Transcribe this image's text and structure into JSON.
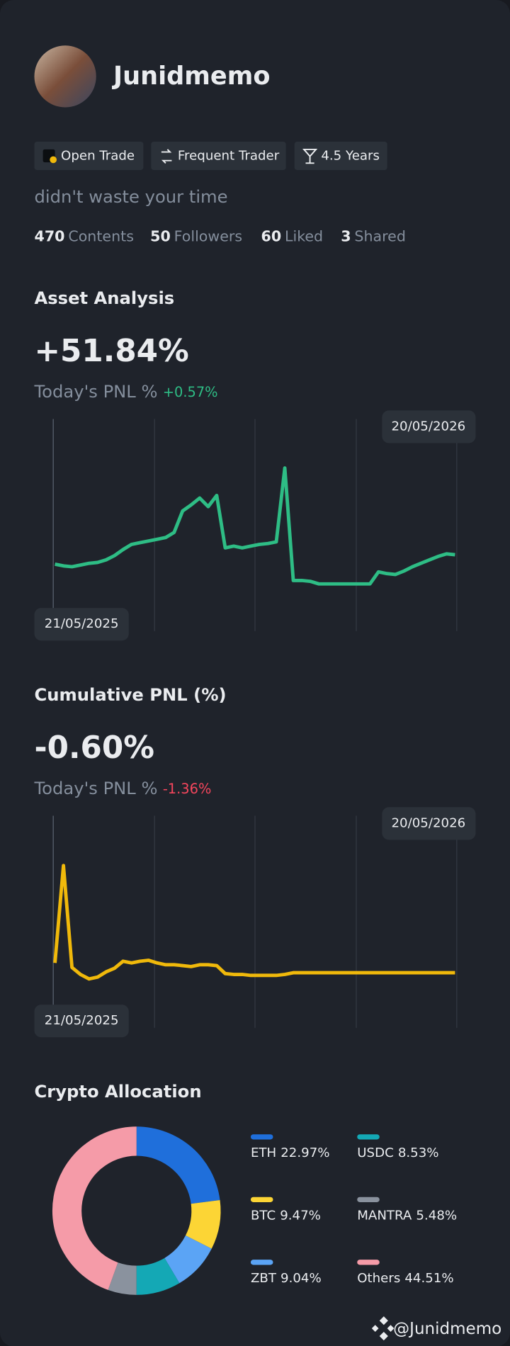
{
  "profile": {
    "name": "Junidmemo",
    "badges": [
      "Open Trade",
      "Frequent Trader",
      "4.5 Years"
    ],
    "bio": "didn't waste your time",
    "stats": [
      {
        "count": "470",
        "label": "Contents"
      },
      {
        "count": "50",
        "label": "Followers"
      },
      {
        "count": "60",
        "label": "Liked"
      },
      {
        "count": "3",
        "label": "Shared"
      }
    ]
  },
  "chart_data": [
    {
      "type": "line",
      "title": "Asset Analysis",
      "headline": "+51.84%",
      "subtitle": "Today's PNL %",
      "subtitle_change": "+0.57%",
      "color": "#2ebd85",
      "start_date": "21/05/2025",
      "end_date": "20/05/2026",
      "values": [
        21.5,
        20.5,
        20,
        21,
        22,
        22.5,
        24,
        26.5,
        30,
        33,
        34,
        35,
        36,
        37,
        40,
        52.5,
        56,
        60,
        55,
        61.5,
        31,
        32,
        31,
        32,
        33,
        33.5,
        34.5,
        77.5,
        12,
        12,
        11.5,
        10,
        10,
        10,
        10,
        10,
        10,
        10,
        17,
        16,
        15.5,
        17.5,
        20,
        22,
        24,
        26,
        27.5,
        27
      ]
    },
    {
      "type": "line",
      "title": "Cumulative PNL (%)",
      "headline": "-0.60%",
      "subtitle": "Today's PNL %",
      "subtitle_change": "-1.36%",
      "color": "#f0b90b",
      "start_date": "21/05/2025",
      "end_date": "20/05/2026",
      "values": [
        2,
        13,
        1.5,
        0.7,
        0.2,
        0.4,
        1,
        1.4,
        2.2,
        2,
        2.2,
        2.3,
        2,
        1.8,
        1.8,
        1.7,
        1.6,
        1.8,
        1.8,
        1.7,
        0.8,
        0.7,
        0.7,
        0.6,
        0.6,
        0.6,
        0.6,
        0.7,
        0.9,
        0.9,
        0.9,
        0.9,
        0.9,
        0.9,
        0.9,
        0.9,
        0.9,
        0.9,
        0.9,
        0.9,
        0.9,
        0.9,
        0.9,
        0.9,
        0.9,
        0.9,
        0.9,
        0.9
      ]
    },
    {
      "type": "pie",
      "title": "Crypto Allocation",
      "categories": [
        "ETH",
        "BTC",
        "ZBT",
        "USDC",
        "MANTRA",
        "Others"
      ],
      "values": [
        22.97,
        9.47,
        9.04,
        8.53,
        5.48,
        44.51
      ],
      "value_labels": [
        "22.97%",
        "9.47%",
        "9.04%",
        "8.53%",
        "5.48%",
        "44.51%"
      ],
      "colors": [
        "#1f6fdb",
        "#fcd535",
        "#5ba4f5",
        "#14a8b5",
        "#8a929e",
        "#f59ba8"
      ]
    }
  ],
  "watermark": "@Junidmemo"
}
